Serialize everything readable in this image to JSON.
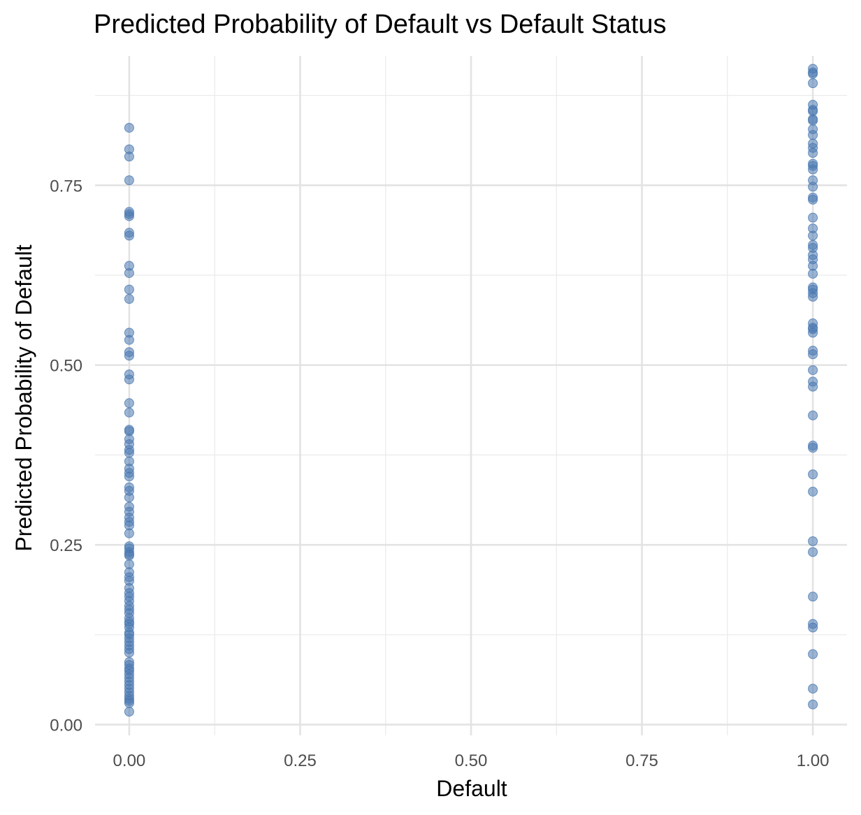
{
  "chart_data": {
    "type": "scatter",
    "title": "Predicted Probability of Default vs Default Status",
    "xlabel": "Default",
    "ylabel": "Predicted Probability of Default",
    "xlim": [
      -0.05,
      1.05
    ],
    "ylim": [
      -0.015,
      0.93
    ],
    "xticks": [
      "0.00",
      "0.25",
      "0.50",
      "0.75",
      "1.00"
    ],
    "xtick_values": [
      0,
      0.25,
      0.5,
      0.75,
      1
    ],
    "yticks": [
      "0.00",
      "0.25",
      "0.50",
      "0.75"
    ],
    "ytick_values": [
      0,
      0.25,
      0.5,
      0.75
    ],
    "grid": true,
    "legend": "none",
    "point_color": "#4a78b0",
    "point_opacity": 0.55,
    "series": [
      {
        "x": 0,
        "y": [
          0.83,
          0.8,
          0.79,
          0.757,
          0.713,
          0.707,
          0.71,
          0.684,
          0.68,
          0.638,
          0.628,
          0.605,
          0.592,
          0.545,
          0.535,
          0.518,
          0.513,
          0.487,
          0.48,
          0.447,
          0.434,
          0.41,
          0.408,
          0.397,
          0.39,
          0.382,
          0.378,
          0.366,
          0.356,
          0.35,
          0.345,
          0.33,
          0.325,
          0.316,
          0.303,
          0.296,
          0.288,
          0.282,
          0.277,
          0.266,
          0.248,
          0.245,
          0.24,
          0.237,
          0.235,
          0.223,
          0.212,
          0.205,
          0.2,
          0.19,
          0.183,
          0.178,
          0.172,
          0.165,
          0.16,
          0.155,
          0.148,
          0.143,
          0.14,
          0.135,
          0.128,
          0.125,
          0.12,
          0.115,
          0.11,
          0.105,
          0.1,
          0.087,
          0.083,
          0.078,
          0.075,
          0.07,
          0.065,
          0.06,
          0.055,
          0.05,
          0.045,
          0.04,
          0.036,
          0.033,
          0.03,
          0.018
        ]
      },
      {
        "x": 1,
        "y": [
          0.912,
          0.907,
          0.905,
          0.892,
          0.862,
          0.855,
          0.853,
          0.842,
          0.84,
          0.828,
          0.82,
          0.808,
          0.802,
          0.795,
          0.78,
          0.777,
          0.772,
          0.757,
          0.748,
          0.733,
          0.73,
          0.705,
          0.69,
          0.68,
          0.667,
          0.663,
          0.653,
          0.647,
          0.638,
          0.627,
          0.608,
          0.605,
          0.6,
          0.595,
          0.558,
          0.552,
          0.55,
          0.545,
          0.52,
          0.515,
          0.493,
          0.477,
          0.47,
          0.43,
          0.388,
          0.385,
          0.348,
          0.324,
          0.255,
          0.24,
          0.178,
          0.14,
          0.135,
          0.098,
          0.05,
          0.028
        ]
      }
    ]
  }
}
